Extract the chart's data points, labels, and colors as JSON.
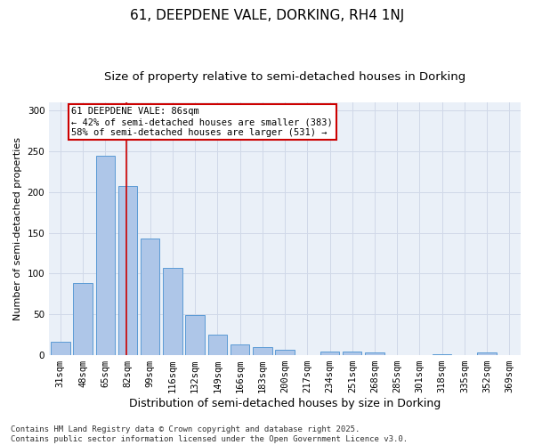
{
  "title": "61, DEEPDENE VALE, DORKING, RH4 1NJ",
  "subtitle": "Size of property relative to semi-detached houses in Dorking",
  "xlabel": "Distribution of semi-detached houses by size in Dorking",
  "ylabel": "Number of semi-detached properties",
  "categories": [
    "31sqm",
    "48sqm",
    "65sqm",
    "82sqm",
    "99sqm",
    "116sqm",
    "132sqm",
    "149sqm",
    "166sqm",
    "183sqm",
    "200sqm",
    "217sqm",
    "234sqm",
    "251sqm",
    "268sqm",
    "285sqm",
    "301sqm",
    "318sqm",
    "335sqm",
    "352sqm",
    "369sqm"
  ],
  "values": [
    16,
    88,
    244,
    207,
    143,
    107,
    49,
    25,
    13,
    10,
    7,
    0,
    4,
    4,
    3,
    0,
    0,
    1,
    0,
    3,
    0
  ],
  "bar_color": "#aec6e8",
  "bar_edge_color": "#5b9bd5",
  "annotation_line1": "61 DEEPDENE VALE: 86sqm",
  "annotation_line2": "← 42% of semi-detached houses are smaller (383)",
  "annotation_line3": "58% of semi-detached houses are larger (531) →",
  "annotation_box_color": "#ffffff",
  "annotation_box_edge": "#cc0000",
  "red_line_color": "#cc0000",
  "red_line_x": 2.95,
  "ylim": [
    0,
    310
  ],
  "yticks": [
    0,
    50,
    100,
    150,
    200,
    250,
    300
  ],
  "grid_color": "#d0d8e8",
  "background_color": "#eaf0f8",
  "footer": "Contains HM Land Registry data © Crown copyright and database right 2025.\nContains public sector information licensed under the Open Government Licence v3.0.",
  "title_fontsize": 11,
  "subtitle_fontsize": 9.5,
  "xlabel_fontsize": 9,
  "ylabel_fontsize": 8,
  "tick_fontsize": 7.5,
  "annot_fontsize": 7.5,
  "footer_fontsize": 6.5
}
